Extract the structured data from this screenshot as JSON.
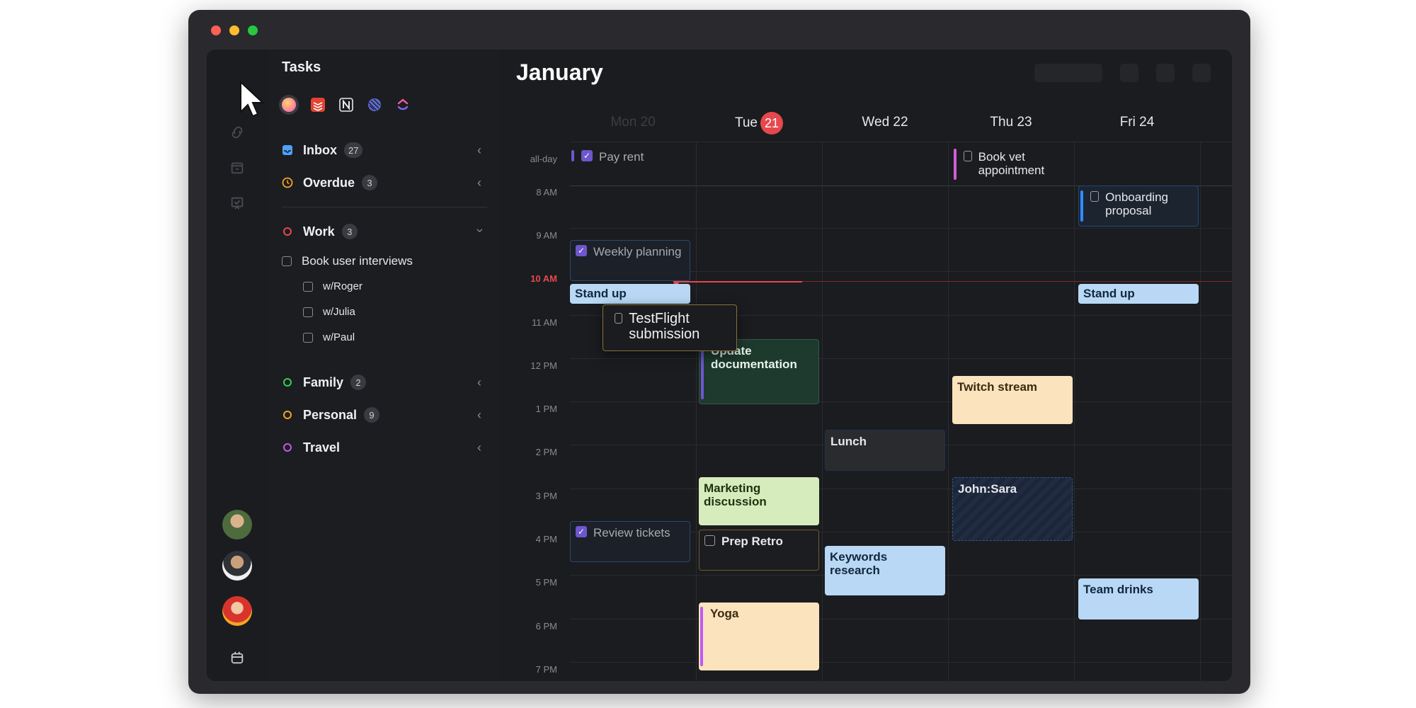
{
  "window": {
    "traffic_lights": [
      {
        "name": "close",
        "color": "#ff5f57"
      },
      {
        "name": "minimize",
        "color": "#febc2e"
      },
      {
        "name": "zoom",
        "color": "#28c840"
      }
    ]
  },
  "rail": {
    "icons": [
      "cursor-pointer-icon",
      "link-icon",
      "calendar-day-icon",
      "checklist-icon"
    ],
    "avatars": [
      "avatar-user-1",
      "avatar-user-2",
      "avatar-user-3"
    ],
    "bottom_icon": "calendar-icon"
  },
  "tasks": {
    "title": "Tasks",
    "sources": [
      "gradient-circle-icon",
      "todoist-icon",
      "notion-icon",
      "linear-icon",
      "clickup-icon"
    ],
    "groups": [
      {
        "label": "Inbox",
        "count": "27",
        "color": "#4ea1ff",
        "icon": "inbox-icon",
        "state": "collapsed"
      },
      {
        "label": "Overdue",
        "count": "3",
        "color": "#f5a524",
        "icon": "clock-icon",
        "state": "collapsed"
      },
      {
        "label": "Work",
        "count": "3",
        "color": "#e5484d",
        "icon": "circle-icon",
        "state": "expanded"
      },
      {
        "label": "Family",
        "count": "2",
        "color": "#30d158",
        "icon": "circle-icon",
        "state": "collapsed"
      },
      {
        "label": "Personal",
        "count": "9",
        "color": "#f5a524",
        "icon": "circle-icon",
        "state": "collapsed"
      },
      {
        "label": "Travel",
        "count": "",
        "color": "#bf5af2",
        "icon": "circle-icon",
        "state": "collapsed"
      }
    ],
    "work_items": [
      {
        "label": "Book user interviews",
        "level": 0
      },
      {
        "label": "w/Roger",
        "level": 1
      },
      {
        "label": "w/Julia",
        "level": 1
      },
      {
        "label": "w/Paul",
        "level": 1
      }
    ]
  },
  "calendar": {
    "month": "January",
    "days": [
      {
        "label": "Mon 20",
        "dim": true
      },
      {
        "label": "Tue",
        "badge": "21"
      },
      {
        "label": "Wed 22"
      },
      {
        "label": "Thu 23"
      },
      {
        "label": "Fri 24"
      }
    ],
    "allday_label": "all-day",
    "times": [
      "8 AM",
      "9 AM",
      "10 AM",
      "11 AM",
      "12 PM",
      "1 PM",
      "2 PM",
      "3 PM",
      "4 PM",
      "5 PM",
      "6 PM",
      "7 PM"
    ],
    "now_label": "10 AM",
    "events": {
      "pay_rent": "Pay rent",
      "book_vet": "Book vet appointment",
      "onboarding": "Onboarding proposal",
      "weekly_planning": "Weekly planning",
      "standup_mon": "Stand up",
      "standup_fri": "Stand up",
      "testflight": "TestFlight submission",
      "update_docs": "Update documentation",
      "twitch": "Twitch stream",
      "lunch": "Lunch",
      "marketing": "Marketing discussion",
      "john_sara": "John:Sara",
      "review_tickets": "Review tickets",
      "prep_retro": "Prep Retro",
      "keywords": "Keywords research",
      "team_drinks": "Team drinks",
      "yoga": "Yoga"
    }
  }
}
